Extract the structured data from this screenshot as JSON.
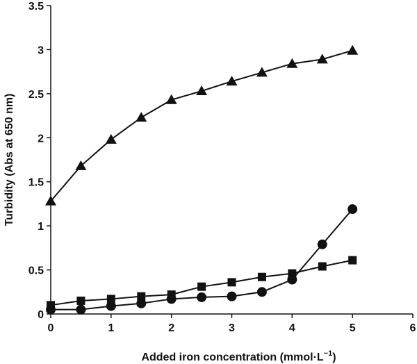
{
  "chart_data": {
    "type": "line",
    "xlabel": "Added iron concentration (mmol·L",
    "xlabel_sup": "−1",
    "xlabel_close": ")",
    "ylabel": "Turbidity (Abs at 650 nm)",
    "xlim": [
      0,
      6
    ],
    "ylim": [
      0,
      3.5
    ],
    "xticks": [
      "0",
      "1",
      "2",
      "3",
      "4",
      "5",
      "6"
    ],
    "yticks": [
      "0",
      "0.5",
      "1",
      "1.5",
      "2",
      "2.5",
      "3",
      "3.5"
    ],
    "grid": false,
    "series": [
      {
        "marker": "triangle",
        "x": [
          0,
          0.5,
          1,
          1.5,
          2,
          2.5,
          3,
          3.5,
          4,
          4.5,
          5
        ],
        "y": [
          1.28,
          1.68,
          1.98,
          2.23,
          2.43,
          2.53,
          2.64,
          2.74,
          2.84,
          2.89,
          2.99
        ]
      },
      {
        "marker": "square",
        "x": [
          0,
          0.5,
          1,
          1.5,
          2,
          2.5,
          3,
          3.5,
          4,
          4.5,
          5
        ],
        "y": [
          0.1,
          0.15,
          0.17,
          0.2,
          0.22,
          0.31,
          0.36,
          0.42,
          0.46,
          0.54,
          0.61
        ]
      },
      {
        "marker": "circle",
        "x": [
          0,
          0.5,
          1,
          1.5,
          2,
          2.5,
          3,
          3.5,
          4,
          4.5,
          5
        ],
        "y": [
          0.05,
          0.05,
          0.09,
          0.12,
          0.17,
          0.19,
          0.2,
          0.25,
          0.39,
          0.79,
          1.19
        ]
      }
    ]
  }
}
